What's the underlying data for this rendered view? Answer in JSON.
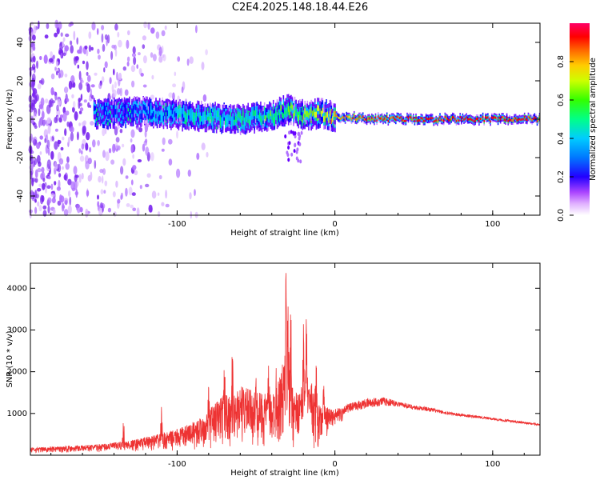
{
  "page_title": "C2E4.2025.148.18.44.E26",
  "chart_data": [
    {
      "type": "heatmap",
      "xlabel": "Height of straight line (km)",
      "ylabel": "Frequency (Hz)",
      "xlim": [
        -193,
        130
      ],
      "ylim": [
        -50,
        50
      ],
      "x_ticks": [
        -100,
        0,
        100
      ],
      "x_tick_labels": [
        "-100",
        "0",
        "100"
      ],
      "y_ticks": [
        -40,
        -20,
        0,
        20,
        40
      ],
      "y_tick_labels": [
        "-40",
        "-20",
        "0",
        "20",
        "40"
      ],
      "colorbar": {
        "label": "Normalized spectral amplitude",
        "range": [
          0,
          1
        ],
        "ticks": [
          0.0,
          0.2,
          0.4,
          0.6,
          0.8
        ],
        "tick_labels": [
          "0.0",
          "0.2",
          "0.4",
          "0.6",
          "0.8"
        ],
        "colors": [
          "#ffffff",
          "#cc88ff",
          "#6600ff",
          "#0000ff",
          "#00ccff",
          "#00ff66",
          "#88ff00",
          "#ffff00",
          "#ff8800",
          "#ff0000",
          "#ff0066"
        ]
      },
      "signal_band": {
        "center_frequency": [
          {
            "x": -193,
            "y": 2
          },
          {
            "x": -140,
            "y": 3
          },
          {
            "x": -120,
            "y": 4
          },
          {
            "x": -100,
            "y": 2
          },
          {
            "x": -80,
            "y": 1
          },
          {
            "x": -60,
            "y": 0
          },
          {
            "x": -40,
            "y": 2
          },
          {
            "x": -30,
            "y": 5
          },
          {
            "x": -20,
            "y": 2
          },
          {
            "x": -10,
            "y": 3
          },
          {
            "x": 0,
            "y": 1
          },
          {
            "x": 40,
            "y": 0
          },
          {
            "x": 100,
            "y": 0
          },
          {
            "x": 130,
            "y": 0
          }
        ],
        "amplitude": [
          {
            "x": -140,
            "v": 0.3
          },
          {
            "x": -100,
            "v": 0.45
          },
          {
            "x": -60,
            "v": 0.5
          },
          {
            "x": -30,
            "v": 0.6
          },
          {
            "x": -10,
            "v": 0.7
          },
          {
            "x": 10,
            "v": 0.85
          },
          {
            "x": 40,
            "v": 0.95
          },
          {
            "x": 130,
            "v": 0.95
          }
        ]
      },
      "noise_region": {
        "x_range": [
          -193,
          -90
        ],
        "amplitude": 0.3
      }
    },
    {
      "type": "line",
      "xlabel": "Height of straight line (km)",
      "ylabel": "SNR (10 * v/v)",
      "xlim": [
        -193,
        130
      ],
      "ylim": [
        0,
        4600
      ],
      "x_ticks": [
        -100,
        0,
        100
      ],
      "x_tick_labels": [
        "-100",
        "0",
        "100"
      ],
      "y_ticks": [
        1000,
        2000,
        3000,
        4000
      ],
      "y_tick_labels": [
        "1000",
        "2000",
        "3000",
        "4000"
      ],
      "color": "#ee3333",
      "series": [
        {
          "x": [
            -193,
            -170,
            -150,
            -130,
            -115,
            -105,
            -95,
            -85,
            -75,
            -70,
            -65,
            -60,
            -55,
            -50,
            -45,
            -40,
            -35,
            -32,
            -30,
            -28,
            -25,
            -20,
            -15,
            -12,
            -10,
            -5,
            0,
            10,
            20,
            30,
            40,
            50,
            60,
            70,
            80,
            90,
            100,
            110,
            120,
            130
          ],
          "values": [
            180,
            220,
            260,
            350,
            480,
            560,
            700,
            900,
            1300,
            1500,
            1400,
            1700,
            1600,
            1500,
            1500,
            1450,
            1900,
            2400,
            3000,
            2000,
            1500,
            1700,
            1800,
            1300,
            1200,
            1150,
            1100,
            1250,
            1350,
            1400,
            1300,
            1200,
            1150,
            1050,
            1000,
            950,
            900,
            850,
            800,
            750
          ],
          "spikes": [
            {
              "x": -70,
              "peak": 2400
            },
            {
              "x": -65,
              "peak": 2700
            },
            {
              "x": -50,
              "peak": 2000
            },
            {
              "x": -42,
              "peak": 2300
            },
            {
              "x": -37,
              "peak": 2600
            },
            {
              "x": -31,
              "peak": 4600
            },
            {
              "x": -29.5,
              "peak": 4200
            },
            {
              "x": -28,
              "peak": 3800
            },
            {
              "x": -20,
              "peak": 3300
            },
            {
              "x": -18,
              "peak": 3700
            },
            {
              "x": -12,
              "peak": 2900
            },
            {
              "x": -7,
              "peak": 2000
            },
            {
              "x": -134,
              "peak": 1100
            },
            {
              "x": -110,
              "peak": 1300
            },
            {
              "x": -80,
              "peak": 1700
            }
          ],
          "floor": [
            {
              "x": -193,
              "v": 50
            },
            {
              "x": -100,
              "v": 100
            },
            {
              "x": -60,
              "v": 200
            },
            {
              "x": -25,
              "v": 100
            },
            {
              "x": -12,
              "v": 50
            },
            {
              "x": 0,
              "v": 700
            },
            {
              "x": 40,
              "v": 1000
            },
            {
              "x": 130,
              "v": 650
            }
          ]
        }
      ]
    }
  ]
}
